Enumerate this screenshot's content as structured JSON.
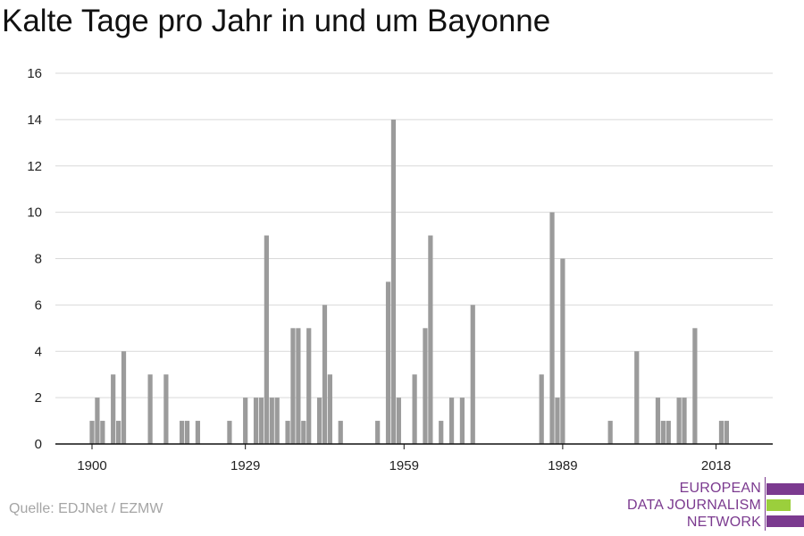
{
  "header": {
    "title": "Kalte Tage pro Jahr in und um Bayonne"
  },
  "footer": {
    "source": "Quelle: EDJNet / EZMW"
  },
  "logo": {
    "line1": "EUROPEAN",
    "line2": "DATA JOURNALISM",
    "line3": "NETWORK",
    "color_primary": "#7b3a8f",
    "color_accent": "#9bcf3c"
  },
  "colors": {
    "bar": "#9b9b9b",
    "grid": "#d9d9d9",
    "axis": "#111111",
    "text": "#222222"
  },
  "chart_data": {
    "type": "bar",
    "title": "Kalte Tage pro Jahr in und um Bayonne",
    "xlabel": "",
    "ylabel": "",
    "ylim": [
      0,
      16
    ],
    "xlim": [
      1894,
      2024
    ],
    "yticks": [
      0,
      2,
      4,
      6,
      8,
      10,
      12,
      14,
      16
    ],
    "xticks": [
      1900,
      1929,
      1959,
      1989,
      2018
    ],
    "grid": true,
    "x": [
      1900,
      1901,
      1902,
      1904,
      1905,
      1906,
      1911,
      1914,
      1917,
      1918,
      1920,
      1926,
      1929,
      1931,
      1932,
      1933,
      1934,
      1935,
      1937,
      1938,
      1939,
      1940,
      1941,
      1943,
      1944,
      1945,
      1947,
      1954,
      1956,
      1957,
      1958,
      1961,
      1963,
      1964,
      1966,
      1968,
      1970,
      1972,
      1985,
      1987,
      1988,
      1989,
      1998,
      2003,
      2007,
      2008,
      2009,
      2011,
      2012,
      2014,
      2019,
      2020
    ],
    "values": [
      1,
      2,
      1,
      3,
      1,
      4,
      3,
      3,
      1,
      1,
      1,
      1,
      2,
      2,
      2,
      9,
      2,
      2,
      1,
      5,
      5,
      1,
      5,
      2,
      6,
      3,
      1,
      1,
      7,
      14,
      2,
      3,
      5,
      9,
      1,
      2,
      2,
      6,
      3,
      10,
      2,
      8,
      1,
      4,
      2,
      1,
      1,
      2,
      2,
      5,
      1,
      1
    ]
  }
}
